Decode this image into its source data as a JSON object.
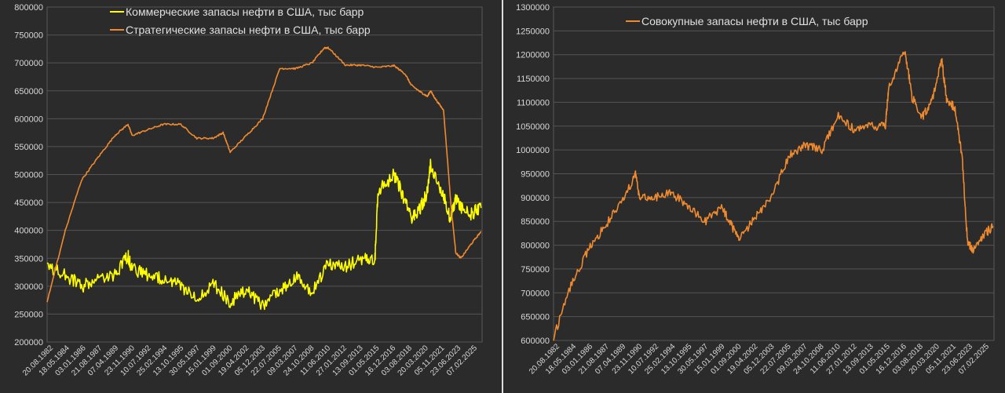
{
  "chart_data": [
    {
      "type": "line",
      "title": "",
      "xlabel": "",
      "ylabel": "",
      "ylim": [
        200000,
        800000
      ],
      "yticks": [
        "200000",
        "250000",
        "300000",
        "350000",
        "400000",
        "450000",
        "500000",
        "550000",
        "600000",
        "650000",
        "700000",
        "750000",
        "800000"
      ],
      "x_tick_labels": [
        "20.08.1982",
        "18.05.1984",
        "03.01.1986",
        "21.08.1987",
        "07.04.1989",
        "23.11.1990",
        "10.07.1992",
        "25.02.1994",
        "13.10.1995",
        "30.05.1997",
        "15.01.1999",
        "01.09.2000",
        "19.04.2002",
        "05.12.2003",
        "22.07.2005",
        "09.03.2007",
        "24.10.2008",
        "11.06.2010",
        "27.01.2012",
        "13.09.2013",
        "01.05.2015",
        "16.12.2016",
        "03.08.2018",
        "20.03.2020",
        "05.11.2021",
        "23.06.2023",
        "07.02.2025"
      ],
      "grid": true,
      "legend_position": "top",
      "series": [
        {
          "name": "Коммерческие запасы нефти в США, тыс барр",
          "color": "#ffff00",
          "x": [
            1982.6,
            1984.4,
            1986.0,
            1987.6,
            1989.3,
            1990.6,
            1991.0,
            1992.5,
            1994.1,
            1995.8,
            1997.4,
            1999.0,
            2000.7,
            2002.3,
            2003.9,
            2005.6,
            2007.2,
            2008.8,
            2010.4,
            2012.1,
            2013.7,
            2015.0,
            2015.3,
            2016.9,
            2017.6,
            2018.6,
            2019.5,
            2020.2,
            2020.5,
            2021.8,
            2022.5,
            2023.0,
            2023.5,
            2024.5,
            2025.5
          ],
          "values": [
            335000,
            320000,
            300000,
            310000,
            320000,
            355000,
            330000,
            320000,
            315000,
            300000,
            280000,
            305000,
            270000,
            295000,
            265000,
            290000,
            315000,
            290000,
            340000,
            335000,
            350000,
            345000,
            470000,
            500000,
            470000,
            420000,
            440000,
            470000,
            520000,
            460000,
            420000,
            460000,
            440000,
            430000,
            440000
          ]
        },
        {
          "name": "Стратегические запасы нефти в США, тыс барр",
          "color": "#f08a2e",
          "x": [
            1982.6,
            1984.4,
            1986.0,
            1987.6,
            1989.3,
            1990.6,
            1991.0,
            1992.5,
            1994.1,
            1995.8,
            1997.4,
            1999.0,
            2000.0,
            2000.7,
            2002.3,
            2003.9,
            2005.6,
            2007.2,
            2008.8,
            2010.0,
            2010.4,
            2012.1,
            2013.7,
            2015.3,
            2016.9,
            2018.0,
            2018.6,
            2019.5,
            2020.2,
            2020.5,
            2021.0,
            2021.8,
            2022.5,
            2023.0,
            2023.5,
            2024.5,
            2025.5
          ],
          "values": [
            272000,
            400000,
            490000,
            530000,
            570000,
            590000,
            570000,
            580000,
            590000,
            590000,
            565000,
            565000,
            575000,
            540000,
            570000,
            600000,
            690000,
            690000,
            700000,
            727000,
            727000,
            696000,
            696000,
            692000,
            695000,
            680000,
            660000,
            648000,
            640000,
            650000,
            635000,
            615000,
            450000,
            360000,
            350000,
            375000,
            398000
          ]
        }
      ]
    },
    {
      "type": "line",
      "title": "",
      "xlabel": "",
      "ylabel": "",
      "ylim": [
        600000,
        1300000
      ],
      "yticks": [
        "600000",
        "650000",
        "700000",
        "750000",
        "800000",
        "850000",
        "900000",
        "950000",
        "1000000",
        "1050000",
        "1100000",
        "1150000",
        "1200000",
        "1250000",
        "1300000"
      ],
      "x_tick_labels": [
        "20.08.1982",
        "18.05.1984",
        "03.01.1986",
        "21.08.1987",
        "07.04.1989",
        "23.11.1990",
        "10.07.1992",
        "25.02.1994",
        "13.10.1995",
        "30.05.1997",
        "15.01.1999",
        "01.09.2000",
        "19.04.2002",
        "05.12.2003",
        "22.07.2005",
        "09.03.2007",
        "24.10.2008",
        "11.06.2010",
        "27.01.2012",
        "13.09.2013",
        "01.05.2015",
        "16.12.2016",
        "03.08.2018",
        "20.03.2020",
        "05.11.2021",
        "23.06.2023",
        "07.02.2025"
      ],
      "grid": true,
      "legend_position": "top",
      "series": [
        {
          "name": "Совокупные запасы нефти в США, тыс барр",
          "color": "#f08a2e",
          "x": [
            1982.6,
            1984.4,
            1986.0,
            1987.6,
            1989.3,
            1990.6,
            1991.0,
            1992.5,
            1994.1,
            1995.8,
            1997.4,
            1999.0,
            2000.0,
            2000.7,
            2002.3,
            2003.9,
            2005.6,
            2007.2,
            2008.8,
            2010.4,
            2012.1,
            2013.7,
            2015.0,
            2015.3,
            2016.9,
            2017.6,
            2018.6,
            2019.5,
            2020.5,
            2021.0,
            2021.8,
            2022.5,
            2023.0,
            2023.5,
            2024.5,
            2025.5
          ],
          "values": [
            607000,
            720000,
            790000,
            840000,
            890000,
            950000,
            900000,
            900000,
            910000,
            880000,
            850000,
            880000,
            840000,
            810000,
            860000,
            900000,
            990000,
            1010000,
            1000000,
            1070000,
            1040000,
            1050000,
            1050000,
            1130000,
            1210000,
            1110000,
            1070000,
            1100000,
            1190000,
            1100000,
            1090000,
            980000,
            810000,
            790000,
            820000,
            840000
          ]
        }
      ]
    }
  ]
}
